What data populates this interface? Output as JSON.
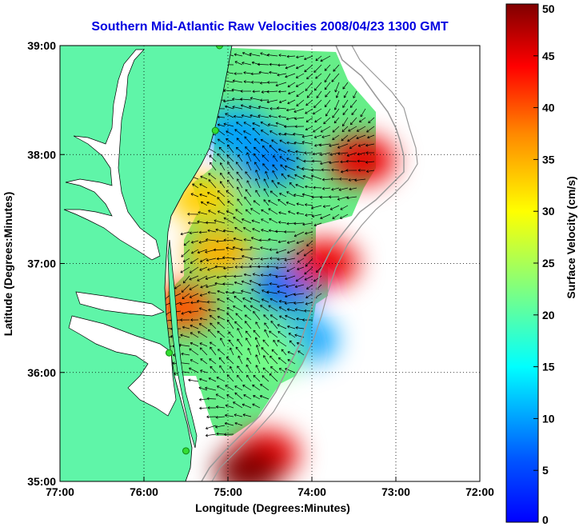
{
  "title": "Southern Mid-Atlantic Raw Velocities 2008/04/23 1300 GMT",
  "xlabel": "Longitude (Degrees:Minutes)",
  "ylabel": "Latitude (Degrees:Minutes)",
  "colorbar_label": "Surface Velocity (cm/s)",
  "x_ticks": [
    "77:00",
    "76:00",
    "75:00",
    "74:00",
    "73:00",
    "72:00"
  ],
  "y_ticks": [
    "39:00",
    "38:00",
    "37:00",
    "36:00",
    "35:00"
  ],
  "colorbar_ticks": [
    "50",
    "45",
    "40",
    "35",
    "30",
    "25",
    "20",
    "15",
    "10",
    "5",
    "0"
  ],
  "colors": {
    "land": "#5ff5a8",
    "water": "#ffffff",
    "title": "#0000e0",
    "station": "#33dd33"
  },
  "chart_data": {
    "type": "heatmap",
    "xlim": [
      -77,
      -72
    ],
    "ylim": [
      35,
      39
    ],
    "clim": [
      0,
      50
    ],
    "colormap": "jet",
    "grid": true,
    "hotspots": [
      {
        "lon": -73.4,
        "lat": 37.95,
        "value": 45
      },
      {
        "lon": -73.85,
        "lat": 37.0,
        "value": 45
      },
      {
        "lon": -75.1,
        "lat": 37.1,
        "value": 35
      },
      {
        "lon": -75.3,
        "lat": 37.6,
        "value": 33
      },
      {
        "lon": -75.55,
        "lat": 36.6,
        "value": 40
      },
      {
        "lon": -74.55,
        "lat": 35.25,
        "value": 45
      },
      {
        "lon": -74.75,
        "lat": 35.1,
        "value": 50
      },
      {
        "lon": -74.5,
        "lat": 36.2,
        "value": 22
      }
    ],
    "coldspots": [
      {
        "lon": -74.5,
        "lat": 37.95,
        "value": 8
      },
      {
        "lon": -74.9,
        "lat": 38.2,
        "value": 10
      },
      {
        "lon": -74.3,
        "lat": 36.8,
        "value": 7
      },
      {
        "lon": -74.1,
        "lat": 36.3,
        "value": 10
      }
    ],
    "stations": [
      {
        "lon": -75.1,
        "lat": 39.0
      },
      {
        "lon": -75.15,
        "lat": 38.22
      },
      {
        "lon": -75.7,
        "lat": 36.18
      },
      {
        "lon": -75.5,
        "lat": 35.28
      }
    ]
  }
}
